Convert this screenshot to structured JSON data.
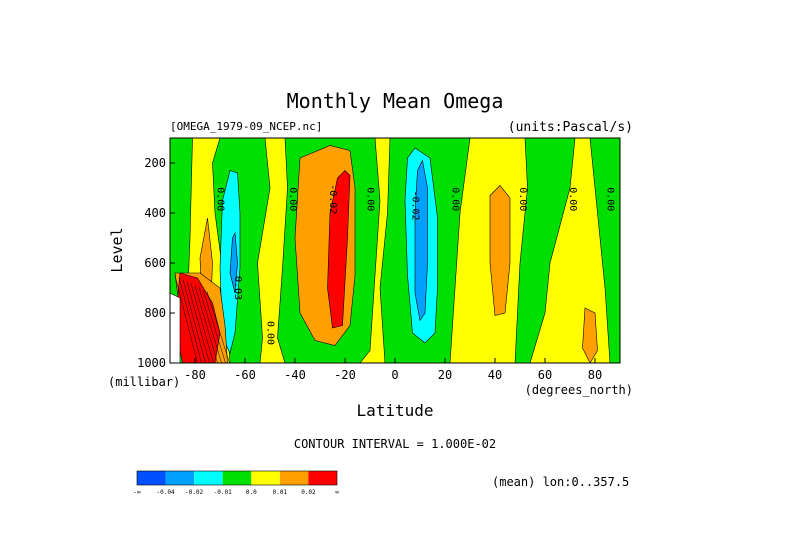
{
  "chart_data": {
    "type": "contour",
    "title": "Monthly Mean Omega",
    "dataset": "[OMEGA_1979-09_NCEP.nc]",
    "units": "(units:Pascal/s)",
    "xlabel": "Latitude",
    "xunits": "(degrees_north)",
    "ylabel": "Level",
    "yunits": "(millibar)",
    "xlim": [
      -90,
      90
    ],
    "ylim": [
      1000,
      100
    ],
    "x_ticks": [
      -80,
      -60,
      -40,
      -20,
      0,
      20,
      40,
      60,
      80
    ],
    "y_ticks": [
      200,
      400,
      600,
      800,
      1000
    ],
    "contour_interval_text": "CONTOUR INTERVAL = 1.000E-02",
    "footer": "(mean) lon:0..357.5",
    "legend": {
      "colors": [
        "#0050ff",
        "#00a0ff",
        "#00ffff",
        "#00e000",
        "#ffff00",
        "#ffa000",
        "#ff0000"
      ],
      "labels": [
        "-∞",
        "-0.04",
        "-0.02",
        "-0.01",
        "0.0",
        "0.01",
        "0.02",
        "∞"
      ]
    },
    "contour_labels": [
      {
        "text": "0.00",
        "lat": -71,
        "level": 345
      },
      {
        "text": "0.00",
        "lat": -42,
        "level": 345
      },
      {
        "text": "-0.02",
        "lat": -26,
        "level": 345
      },
      {
        "text": "0.00",
        "lat": -11,
        "level": 345
      },
      {
        "text": "-0.02",
        "lat": 7,
        "level": 370
      },
      {
        "text": "0.00",
        "lat": 23,
        "level": 345
      },
      {
        "text": "0.00",
        "lat": 50,
        "level": 345
      },
      {
        "text": "0.00",
        "lat": 70,
        "level": 345
      },
      {
        "text": "0.00",
        "lat": 85,
        "level": 345
      },
      {
        "text": "0.03",
        "lat": -64,
        "level": 700
      },
      {
        "text": "0.00",
        "lat": -51,
        "level": 880
      }
    ],
    "regions": [
      {
        "value_class": "0.0 to 0.01",
        "color": "#ffff00",
        "poly": [
          [
            -90,
            100
          ],
          [
            90,
            100
          ],
          [
            90,
            1000
          ],
          [
            -90,
            1000
          ]
        ]
      },
      {
        "value_class": "-0.01 to 0.0",
        "color": "#00e000",
        "poly": [
          [
            -90,
            100
          ],
          [
            -81,
            100
          ],
          [
            -82,
            500
          ],
          [
            -84,
            1000
          ],
          [
            -90,
            1000
          ]
        ]
      },
      {
        "value_class": "-0.01 to 0.0",
        "color": "#00e000",
        "poly": [
          [
            -70,
            100
          ],
          [
            -52,
            100
          ],
          [
            -50,
            300
          ],
          [
            -55,
            600
          ],
          [
            -53,
            900
          ],
          [
            -54,
            1000
          ],
          [
            -66,
            1000
          ],
          [
            -68,
            700
          ],
          [
            -72,
            400
          ],
          [
            -73,
            200
          ]
        ]
      },
      {
        "value_class": "-0.01 to 0.0",
        "color": "#00e000",
        "poly": [
          [
            -44,
            100
          ],
          [
            -8,
            100
          ],
          [
            -6,
            350
          ],
          [
            -8,
            650
          ],
          [
            -10,
            950
          ],
          [
            -14,
            1000
          ],
          [
            -44,
            1000
          ],
          [
            -47,
            900
          ],
          [
            -45,
            620
          ],
          [
            -43,
            300
          ]
        ]
      },
      {
        "value_class": "-0.01 to 0.0",
        "color": "#00e000",
        "poly": [
          [
            -2,
            100
          ],
          [
            30,
            100
          ],
          [
            26,
            400
          ],
          [
            24,
            700
          ],
          [
            22,
            1000
          ],
          [
            -4,
            1000
          ],
          [
            -6,
            700
          ],
          [
            -3,
            400
          ]
        ]
      },
      {
        "value_class": "-0.01 to 0.0",
        "color": "#00e000",
        "poly": [
          [
            52,
            100
          ],
          [
            72,
            100
          ],
          [
            70,
            300
          ],
          [
            62,
            600
          ],
          [
            60,
            800
          ],
          [
            54,
            1000
          ],
          [
            48,
            1000
          ],
          [
            50,
            600
          ],
          [
            53,
            300
          ]
        ]
      },
      {
        "value_class": "-0.01 to 0.0",
        "color": "#00e000",
        "poly": [
          [
            78,
            100
          ],
          [
            90,
            100
          ],
          [
            90,
            1000
          ],
          [
            86,
            1000
          ],
          [
            84,
            700
          ],
          [
            82,
            500
          ],
          [
            80,
            300
          ]
        ]
      },
      {
        "value_class": "-0.02 to -0.01",
        "color": "#00ffff",
        "poly": [
          [
            -63,
            240
          ],
          [
            -62,
            400
          ],
          [
            -62,
            620
          ],
          [
            -64,
            880
          ],
          [
            -66,
            960
          ],
          [
            -69,
            900
          ],
          [
            -70,
            620
          ],
          [
            -69,
            350
          ],
          [
            -66,
            230
          ]
        ]
      },
      {
        "value_class": "-0.02 to -0.01",
        "color": "#00ffff",
        "poly": [
          [
            8,
            140
          ],
          [
            14,
            180
          ],
          [
            17,
            420
          ],
          [
            17,
            700
          ],
          [
            16,
            880
          ],
          [
            12,
            920
          ],
          [
            7,
            880
          ],
          [
            5,
            650
          ],
          [
            4,
            350
          ],
          [
            5,
            180
          ]
        ]
      },
      {
        "value_class": "-0.04 to -0.02",
        "color": "#00a0ff",
        "poly": [
          [
            11,
            190
          ],
          [
            13,
            300
          ],
          [
            13,
            600
          ],
          [
            12,
            800
          ],
          [
            10,
            830
          ],
          [
            8,
            720
          ],
          [
            8,
            400
          ],
          [
            9,
            230
          ]
        ]
      },
      {
        "value_class": "-0.04 to -0.02",
        "color": "#00a0ff",
        "poly": [
          [
            -64,
            480
          ],
          [
            -63,
            600
          ],
          [
            -64,
            720
          ],
          [
            -66,
            640
          ],
          [
            -65,
            500
          ]
        ]
      },
      {
        "value_class": "0.01 to 0.02",
        "color": "#ffa000",
        "poly": [
          [
            -38,
            180
          ],
          [
            -26,
            130
          ],
          [
            -18,
            150
          ],
          [
            -16,
            300
          ],
          [
            -16,
            650
          ],
          [
            -18,
            850
          ],
          [
            -24,
            930
          ],
          [
            -32,
            910
          ],
          [
            -38,
            800
          ],
          [
            -40,
            500
          ]
        ]
      },
      {
        "value_class": "0.02 to ∞",
        "color": "#ff0000",
        "poly": [
          [
            -20,
            230
          ],
          [
            -18,
            250
          ],
          [
            -19,
            500
          ],
          [
            -21,
            850
          ],
          [
            -25,
            860
          ],
          [
            -27,
            700
          ],
          [
            -26,
            400
          ],
          [
            -23,
            260
          ]
        ]
      },
      {
        "value_class": "0.01 to 0.02",
        "color": "#ffa000",
        "poly": [
          [
            -75,
            420
          ],
          [
            -73,
            600
          ],
          [
            -74,
            850
          ],
          [
            -77,
            800
          ],
          [
            -78,
            580
          ]
        ]
      },
      {
        "value_class": "0.01 to 0.02",
        "color": "#ffa000",
        "poly": [
          [
            -78,
            640
          ],
          [
            -70,
            700
          ],
          [
            -68,
            850
          ],
          [
            -67,
            1000
          ],
          [
            -84,
            1000
          ],
          [
            -86,
            800
          ],
          [
            -88,
            640
          ]
        ]
      },
      {
        "value_class": "0.02 to ∞",
        "color": "#ff0000",
        "poly": [
          [
            -86,
            640
          ],
          [
            -79,
            660
          ],
          [
            -73,
            760
          ],
          [
            -70,
            880
          ],
          [
            -72,
            1000
          ],
          [
            -85,
            1000
          ],
          [
            -88,
            850
          ]
        ]
      },
      {
        "value_class": "0.01 to 0.02",
        "color": "#ffa000",
        "poly": [
          [
            38,
            330
          ],
          [
            42,
            290
          ],
          [
            46,
            340
          ],
          [
            46,
            600
          ],
          [
            44,
            800
          ],
          [
            40,
            810
          ],
          [
            38,
            600
          ]
        ]
      },
      {
        "value_class": "0.01 to 0.02",
        "color": "#ffa000",
        "poly": [
          [
            76,
            780
          ],
          [
            80,
            800
          ],
          [
            81,
            950
          ],
          [
            78,
            1000
          ],
          [
            75,
            940
          ]
        ]
      },
      {
        "value_class": "-∞ to -0.04",
        "color": "#ffffff",
        "poly": [
          [
            -90,
            720
          ],
          [
            -86,
            740
          ],
          [
            -86,
            1000
          ],
          [
            -90,
            1000
          ]
        ]
      }
    ]
  }
}
